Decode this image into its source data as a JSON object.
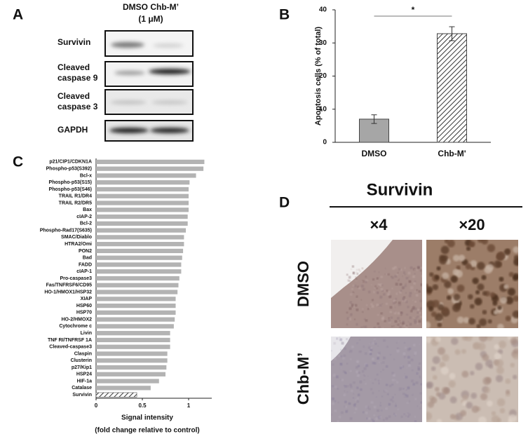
{
  "panel_labels": [
    "A",
    "B",
    "C",
    "D"
  ],
  "blot": {
    "header": [
      "DMSO Chb-M’",
      "(1 μM)"
    ],
    "rows": [
      [
        "Survivin"
      ],
      [
        "Cleaved",
        "caspase 9"
      ],
      [
        "Cleaved",
        "caspase 3"
      ],
      [
        "GAPDH"
      ]
    ]
  },
  "ihc": {
    "title": "Survivin",
    "columns": [
      "×4",
      "×20"
    ],
    "rows": [
      "DMSO",
      "Chb-M’"
    ]
  },
  "chart_data": [
    {
      "type": "bar",
      "orientation": "vertical",
      "y_label": "Apoptosis cells (% of total)",
      "categories": [
        "DMSO",
        "Chb-M'"
      ],
      "values": [
        7.0,
        32.8
      ],
      "error": [
        1.3,
        2.1
      ],
      "colors": [
        "#a6a6a6",
        "#ffffff"
      ],
      "hatch": [
        false,
        true
      ],
      "annotation": "*",
      "ylim": [
        0,
        40
      ],
      "yticks": [
        0,
        10,
        20,
        30,
        40
      ],
      "grid": false
    },
    {
      "type": "bar",
      "orientation": "horizontal",
      "x_label": [
        "Signal intensity",
        "(fold change relative to control)"
      ],
      "categories": [
        "p21/CIP1/CDKN1A",
        "Phospho-p53(S392)",
        "Bcl-x",
        "Phospho-p53(S15)",
        "Phospho-p53(S46)",
        "TRAIL R1/DR4",
        "TRAIL R2/DR5",
        "Bax",
        "cIAP-2",
        "Bcl-2",
        "Phospho-Rad17(S635)",
        "SMAC/Diablo",
        "HTRA2/Omi",
        "PON2",
        "Bad",
        "FADD",
        "cIAP-1",
        "Pro-caspase3",
        "Fas/TNFRSF6/CD95",
        "HO-1/HMOX1/HSP32",
        "XIAP",
        "HSP60",
        "HSP70",
        "HO-2/HMOX2",
        "Cytochrome c",
        "Livin",
        "TNF RI/TNFRSF 1A",
        "Cleaved-caspase3",
        "Claspin",
        "Clusterin",
        "p27/Kip1",
        "HSP24",
        "HIF-1a",
        "Catalase",
        "Survivin"
      ],
      "values": [
        1.17,
        1.16,
        1.08,
        1.01,
        1.0,
        1.0,
        1.0,
        1.0,
        0.99,
        0.99,
        0.97,
        0.95,
        0.95,
        0.94,
        0.93,
        0.92,
        0.92,
        0.9,
        0.89,
        0.88,
        0.86,
        0.86,
        0.86,
        0.85,
        0.84,
        0.8,
        0.8,
        0.8,
        0.77,
        0.77,
        0.76,
        0.75,
        0.68,
        0.59,
        0.44
      ],
      "color": "#b3b3b3",
      "hatch": [
        false,
        false,
        false,
        false,
        false,
        false,
        false,
        false,
        false,
        false,
        false,
        false,
        false,
        false,
        false,
        false,
        false,
        false,
        false,
        false,
        false,
        false,
        false,
        false,
        false,
        false,
        false,
        false,
        false,
        false,
        false,
        false,
        false,
        false,
        true
      ],
      "xlim": [
        0,
        1.25
      ],
      "xticks": [
        0,
        0.5,
        1
      ],
      "grid": false
    }
  ]
}
